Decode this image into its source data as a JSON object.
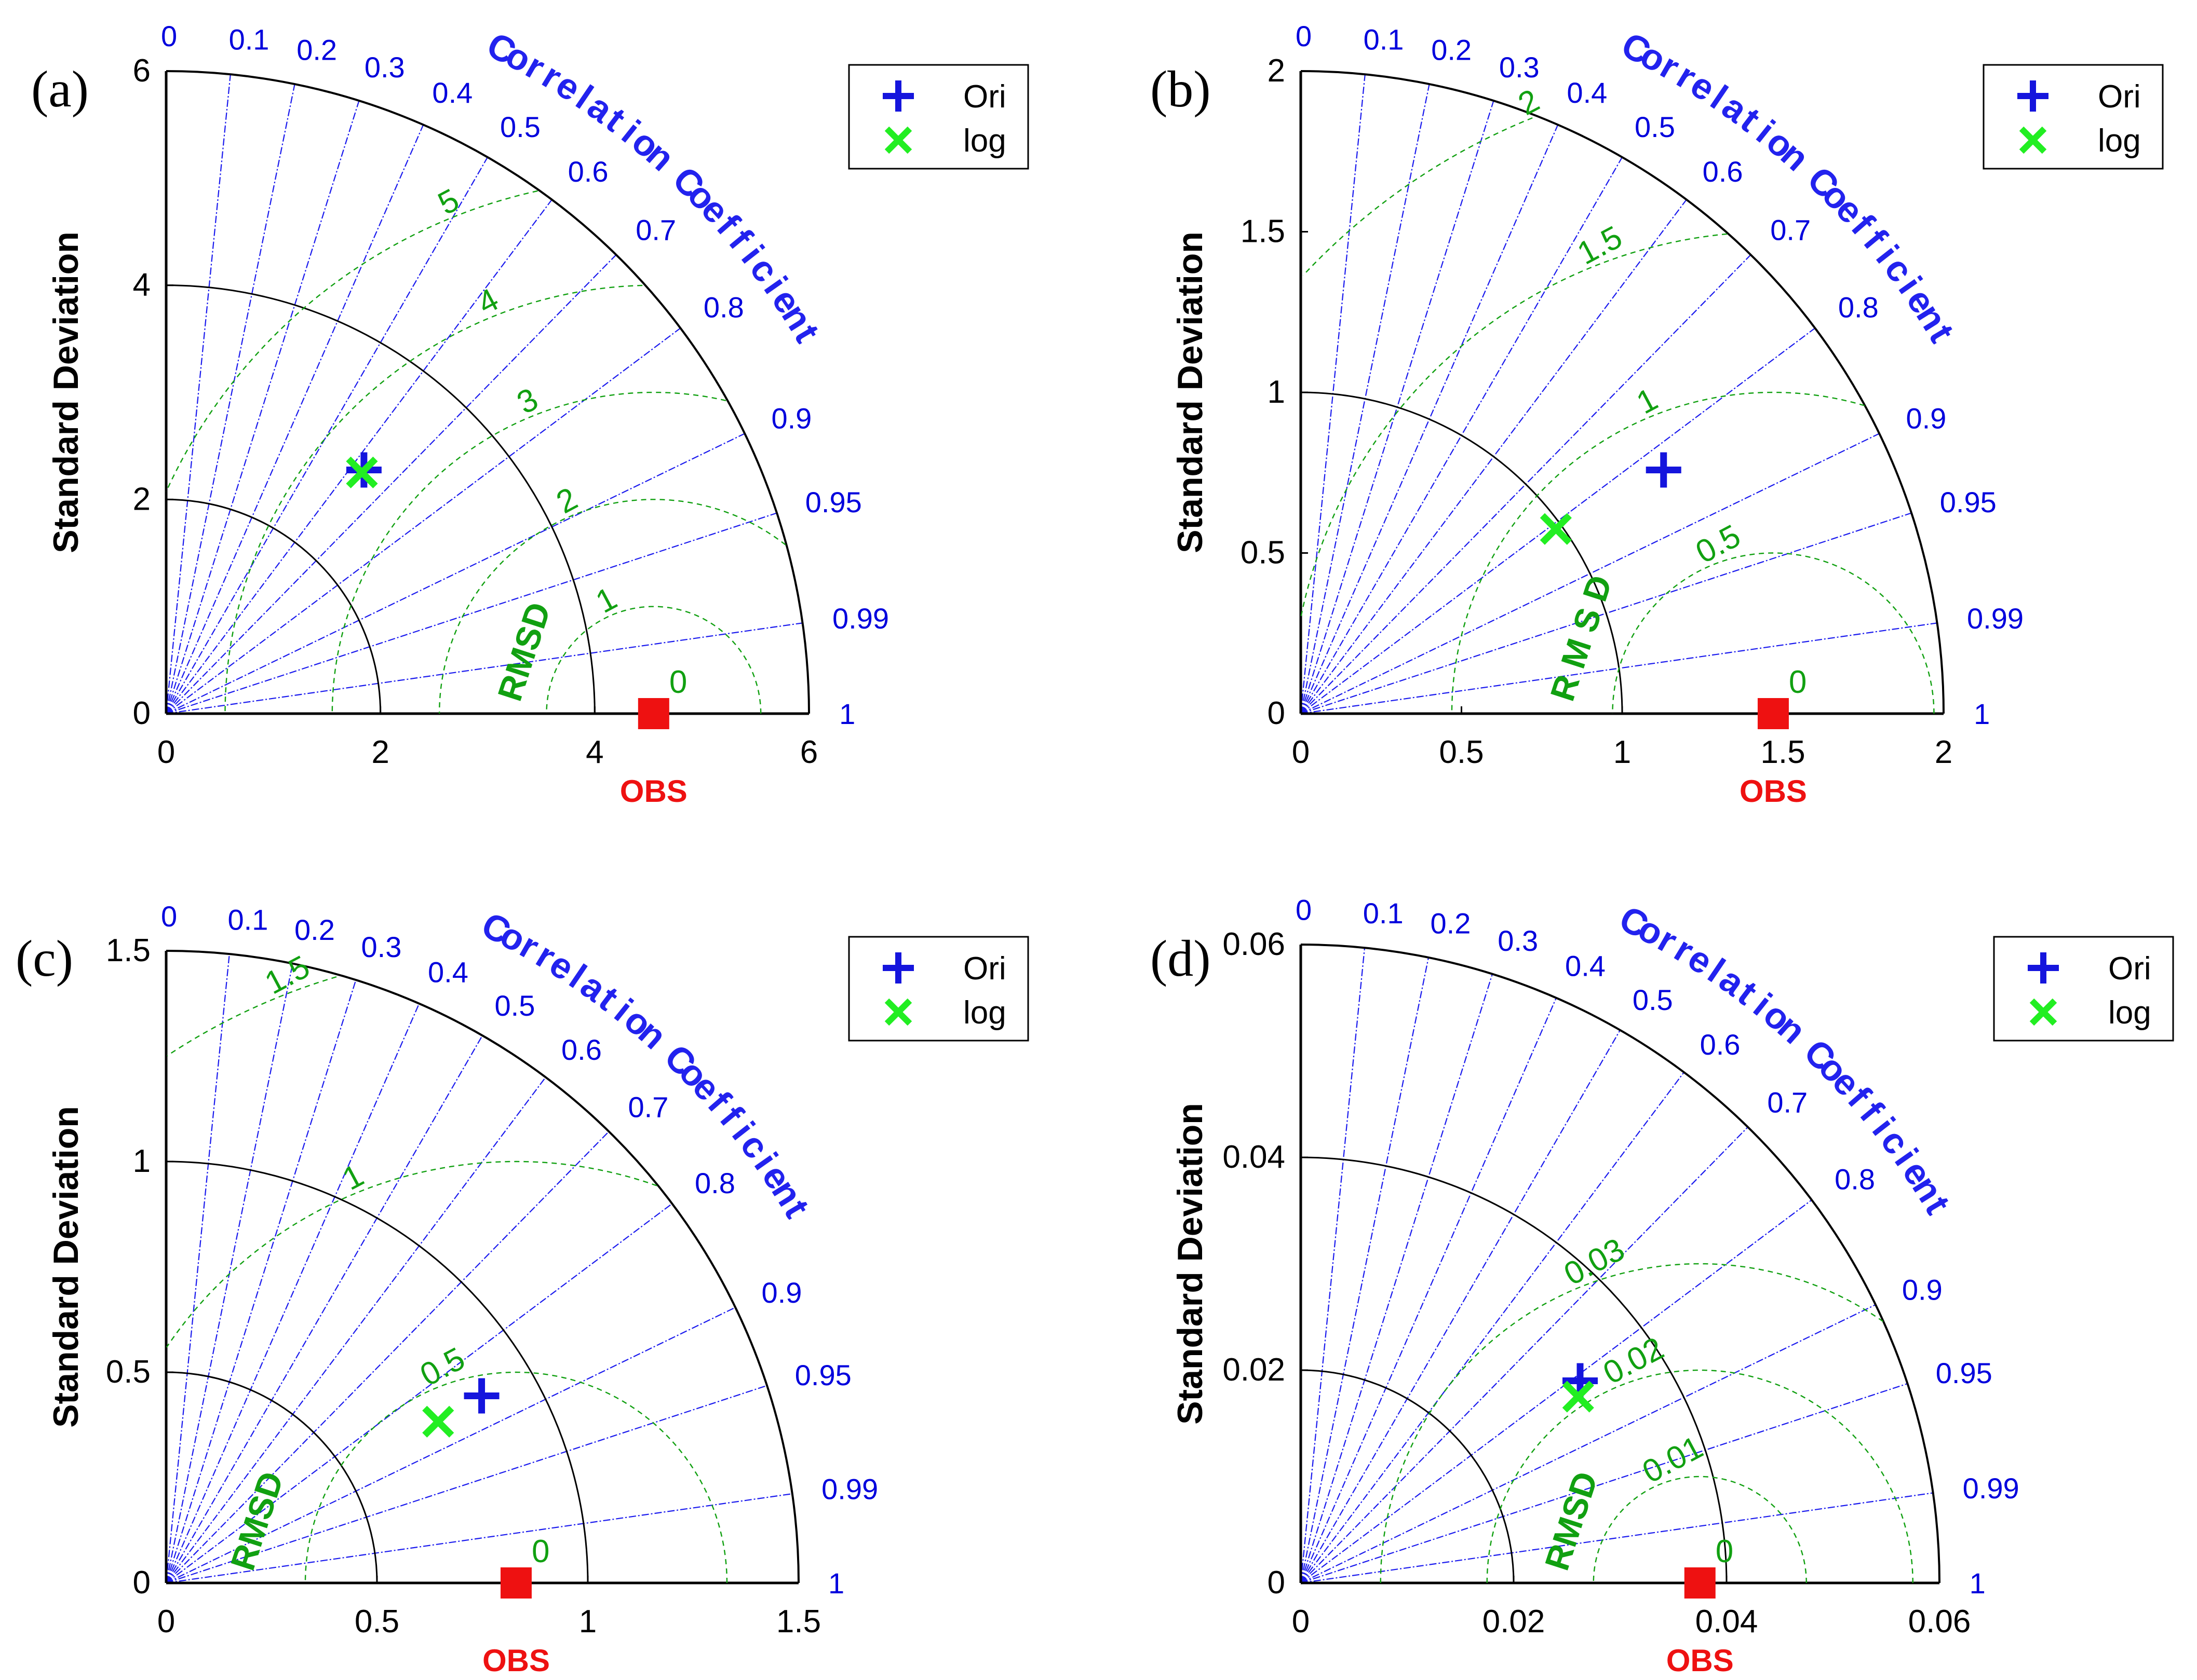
{
  "colors": {
    "corr_line": "#1a1aee",
    "rms_line": "#11a011",
    "obs": "#ee1111",
    "ori": "#1515dd",
    "log": "#22ee22",
    "frame": "#000000"
  },
  "legend": [
    {
      "name": "Ori",
      "marker": "plus-icon"
    },
    {
      "name": "log",
      "marker": "cross-icon"
    }
  ],
  "axis_labels": {
    "y": "Standard Deviation",
    "arc": "Correlation Coefficient",
    "rmsd": "RMSD",
    "obs": "OBS"
  },
  "correlation_ticks": [
    "0",
    "0.1",
    "0.2",
    "0.3",
    "0.4",
    "0.5",
    "0.6",
    "0.7",
    "0.8",
    "0.9",
    "0.95",
    "0.99",
    "1"
  ],
  "chart_data": [
    {
      "type": "scatter",
      "panel": "(a)",
      "xlim": [
        0,
        6
      ],
      "std_ticks": [
        "0",
        "2",
        "4",
        "6"
      ],
      "std_arcs": [
        2,
        4,
        6
      ],
      "obs_std": 4.55,
      "rmsd_contours": [
        0,
        1,
        2,
        3,
        4,
        5
      ],
      "rmsd_label": "RMSD",
      "series": [
        {
          "name": "Ori",
          "std": 2.93,
          "corr": 0.63
        },
        {
          "name": "log",
          "std": 2.9,
          "corr": 0.63
        }
      ]
    },
    {
      "type": "scatter",
      "panel": "(b)",
      "xlim": [
        0,
        2
      ],
      "std_ticks": [
        "0",
        "0.5",
        "1",
        "1.5",
        "2"
      ],
      "std_arcs": [
        1,
        2
      ],
      "obs_std": 1.47,
      "rmsd_contours": [
        0,
        0.5,
        1,
        1.5,
        2
      ],
      "rmsd_label": "R M S D",
      "series": [
        {
          "name": "Ori",
          "std": 1.36,
          "corr": 0.83
        },
        {
          "name": "log",
          "std": 0.98,
          "corr": 0.81
        }
      ]
    },
    {
      "type": "scatter",
      "panel": "(c)",
      "xlim": [
        0,
        1.5
      ],
      "std_ticks": [
        "0",
        "0.5",
        "1",
        "1.5"
      ],
      "std_arcs": [
        0.5,
        1,
        1.5
      ],
      "obs_std": 0.83,
      "rmsd_contours": [
        0,
        0.5,
        1,
        1.5
      ],
      "rmsd_label": "RMSD",
      "series": [
        {
          "name": "Ori",
          "std": 0.87,
          "corr": 0.86
        },
        {
          "name": "log",
          "std": 0.75,
          "corr": 0.86
        }
      ]
    },
    {
      "type": "scatter",
      "panel": "(d)",
      "xlim": [
        0,
        0.06
      ],
      "std_ticks": [
        "0",
        "0.02",
        "0.04",
        "0.06"
      ],
      "std_arcs": [
        0.02,
        0.04,
        0.06
      ],
      "obs_std": 0.0375,
      "rmsd_contours": [
        0,
        0.01,
        0.02,
        0.03
      ],
      "rmsd_label": "RMSD",
      "series": [
        {
          "name": "Ori",
          "std": 0.0324,
          "corr": 0.81
        },
        {
          "name": "log",
          "std": 0.0314,
          "corr": 0.83
        }
      ]
    }
  ]
}
